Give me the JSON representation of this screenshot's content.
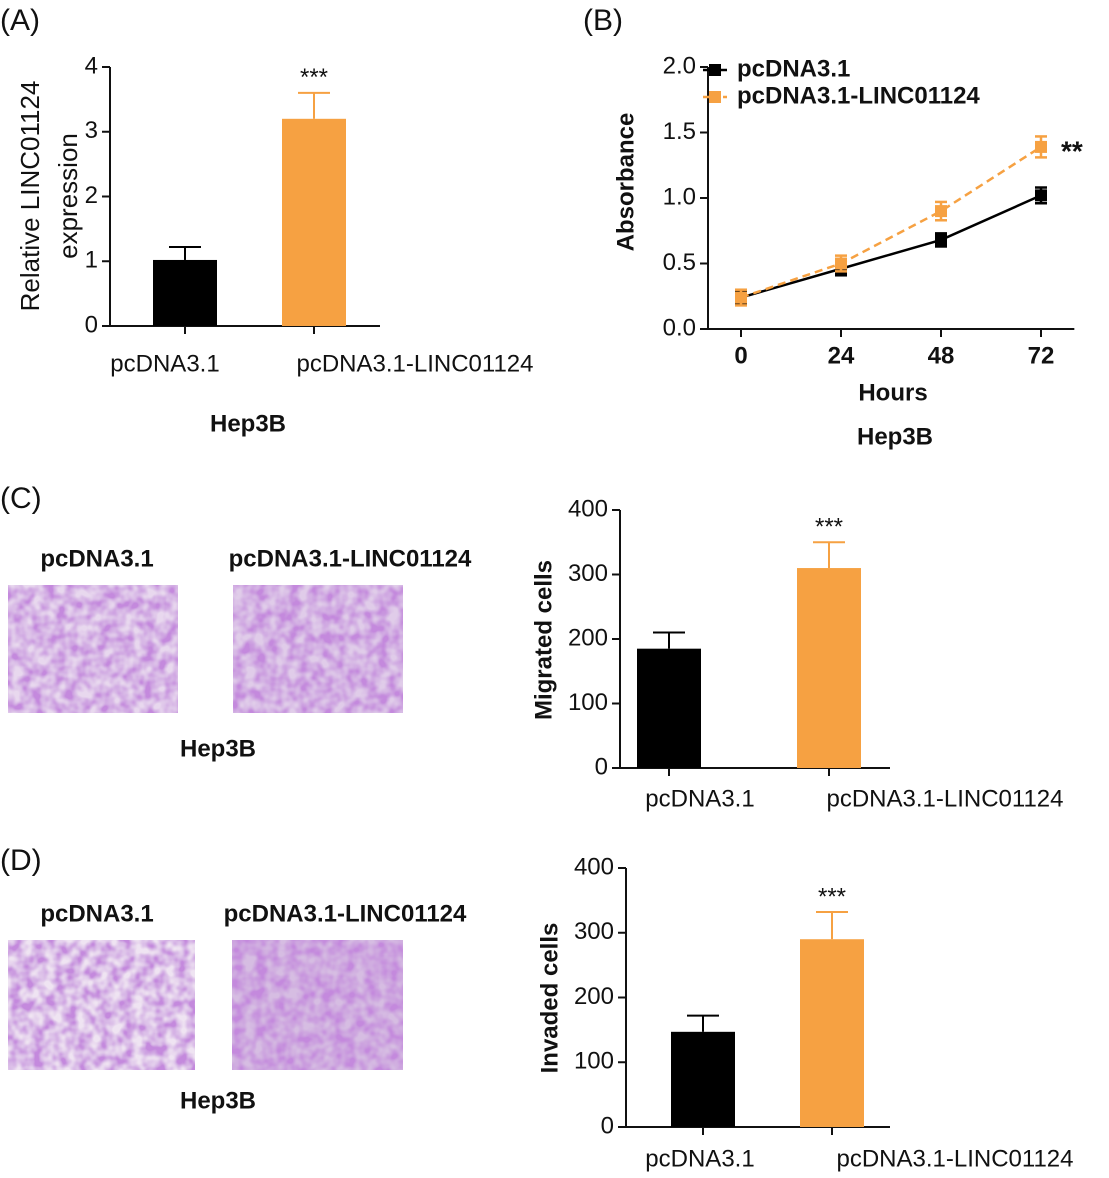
{
  "chart_data": [
    {
      "type": "bar",
      "panel": "(A)",
      "ylabel": [
        "Relative LINC01124",
        "expression"
      ],
      "xlabel": "Hep3B",
      "categories": [
        "pcDNA3.1",
        "pcDNA3.1-LINC01124"
      ],
      "values": [
        1.02,
        3.2
      ],
      "errors": [
        0.2,
        0.4
      ],
      "colors": [
        "#000000",
        "#f6a142"
      ],
      "ylim": [
        0,
        4
      ],
      "yticks": [
        0,
        1,
        2,
        3,
        4
      ],
      "annotations": [
        "***"
      ]
    },
    {
      "type": "line",
      "panel": "(B)",
      "ylabel": "Absorbance",
      "xlabel": "Hours",
      "caption": "Hep3B",
      "x": [
        0,
        24,
        48,
        72
      ],
      "xlim": [
        -8,
        80
      ],
      "xticks": [
        0,
        24,
        48,
        72
      ],
      "ylim": [
        0,
        2.0
      ],
      "yticks": [
        {
          "value": 0,
          "label": "0.0"
        },
        {
          "value": 0.5,
          "label": "0.5"
        },
        {
          "value": 1.0,
          "label": "1.0"
        },
        {
          "value": 1.5,
          "label": "1.5"
        },
        {
          "value": 2.0,
          "label": "2.0"
        }
      ],
      "series": [
        {
          "name": "pcDNA3.1",
          "color": "#000000",
          "dashed": false,
          "values": [
            0.24,
            0.46,
            0.68,
            1.02
          ],
          "errors": [
            0.05,
            0.05,
            0.05,
            0.06
          ]
        },
        {
          "name": "pcDNA3.1-LINC01124",
          "color": "#f6a142",
          "dashed": true,
          "values": [
            0.24,
            0.5,
            0.9,
            1.39
          ],
          "errors": [
            0.06,
            0.06,
            0.07,
            0.08
          ]
        }
      ],
      "annotations": [
        "**"
      ]
    },
    {
      "type": "bar",
      "panel": "(C)",
      "ylabel": "Migrated cells",
      "images": [
        "pcDNA3.1",
        "pcDNA3.1-LINC01124"
      ],
      "image_caption": "Hep3B",
      "categories": [
        "pcDNA3.1",
        "pcDNA3.1-LINC01124"
      ],
      "values": [
        185,
        310
      ],
      "errors": [
        25,
        40
      ],
      "colors": [
        "#000000",
        "#f6a142"
      ],
      "ylim": [
        0,
        400
      ],
      "yticks": [
        0,
        100,
        200,
        300,
        400
      ],
      "annotations": [
        "***"
      ]
    },
    {
      "type": "bar",
      "panel": "(D)",
      "ylabel": "Invaded cells",
      "images": [
        "pcDNA3.1",
        "pcDNA3.1-LINC01124"
      ],
      "image_caption": "Hep3B",
      "categories": [
        "pcDNA3.1",
        "pcDNA3.1-LINC01124"
      ],
      "values": [
        147,
        290
      ],
      "errors": [
        25,
        42
      ],
      "colors": [
        "#000000",
        "#f6a142"
      ],
      "ylim": [
        0,
        400
      ],
      "yticks": [
        0,
        100,
        200,
        300,
        400
      ],
      "annotations": [
        "***"
      ]
    }
  ]
}
